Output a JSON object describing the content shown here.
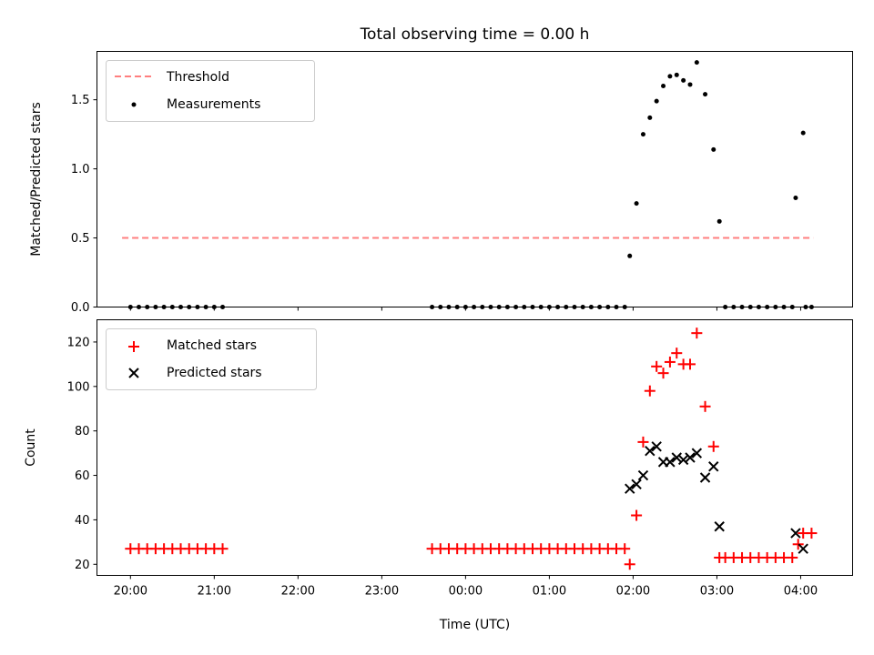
{
  "chart_data": [
    {
      "type": "scatter",
      "title": "Total observing time = 0.00 h",
      "xlabel": "",
      "ylabel": "Matched/Predicted stars",
      "ylim": [
        0,
        1.85
      ],
      "yticks": [
        0.0,
        0.5,
        1.0,
        1.5
      ],
      "ytick_labels": [
        "0.0",
        "0.5",
        "1.0",
        "1.5"
      ],
      "xlim": [
        -0.4,
        8.62
      ],
      "xticks": [
        0,
        1,
        2,
        3,
        4,
        5,
        6,
        7,
        8
      ],
      "legend": {
        "position": "top-left",
        "entries": [
          "Threshold",
          "Measurements"
        ]
      },
      "series": [
        {
          "name": "Threshold",
          "kind": "dashed-line",
          "color": "#ff7f7f",
          "x": [
            -0.1,
            8.15
          ],
          "y": [
            0.5,
            0.5
          ]
        },
        {
          "name": "Measurements",
          "kind": "dot",
          "color": "#000000",
          "x": [
            0.0,
            0.1,
            0.2,
            0.3,
            0.4,
            0.5,
            0.6,
            0.7,
            0.8,
            0.9,
            1.0,
            1.1,
            3.6,
            3.7,
            3.8,
            3.9,
            4.0,
            4.1,
            4.2,
            4.3,
            4.4,
            4.5,
            4.6,
            4.7,
            4.8,
            4.9,
            5.0,
            5.1,
            5.2,
            5.3,
            5.4,
            5.5,
            5.6,
            5.7,
            5.8,
            5.9,
            5.96,
            6.04,
            6.12,
            6.2,
            6.28,
            6.36,
            6.44,
            6.52,
            6.6,
            6.68,
            6.76,
            6.86,
            6.96,
            7.03,
            7.1,
            7.2,
            7.3,
            7.4,
            7.5,
            7.6,
            7.7,
            7.8,
            7.9,
            8.06,
            8.13,
            7.94,
            8.03
          ],
          "y": [
            0,
            0,
            0,
            0,
            0,
            0,
            0,
            0,
            0,
            0,
            0,
            0,
            0,
            0,
            0,
            0,
            0,
            0,
            0,
            0,
            0,
            0,
            0,
            0,
            0,
            0,
            0,
            0,
            0,
            0,
            0,
            0,
            0,
            0,
            0,
            0,
            0.37,
            0.75,
            1.25,
            1.37,
            1.49,
            1.6,
            1.67,
            1.68,
            1.64,
            1.61,
            1.77,
            1.54,
            1.14,
            0.62,
            0,
            0,
            0,
            0,
            0,
            0,
            0,
            0,
            0,
            0,
            0,
            0.79,
            1.26
          ]
        }
      ]
    },
    {
      "type": "scatter",
      "xlabel": "Time (UTC)",
      "ylabel": "Count",
      "ylim": [
        15,
        130
      ],
      "yticks": [
        20,
        40,
        60,
        80,
        100,
        120
      ],
      "ytick_labels": [
        "20",
        "40",
        "60",
        "80",
        "100",
        "120"
      ],
      "xlim": [
        -0.4,
        8.62
      ],
      "xticks": [
        0,
        1,
        2,
        3,
        4,
        5,
        6,
        7,
        8
      ],
      "xtick_labels": [
        "20:00",
        "21:00",
        "22:00",
        "23:00",
        "00:00",
        "01:00",
        "02:00",
        "03:00",
        "04:00"
      ],
      "legend": {
        "position": "top-left",
        "entries": [
          "Matched stars",
          "Predicted stars"
        ]
      },
      "series": [
        {
          "name": "Matched stars",
          "kind": "plus",
          "color": "#ff0000",
          "x": [
            0.0,
            0.1,
            0.2,
            0.3,
            0.4,
            0.5,
            0.6,
            0.7,
            0.8,
            0.9,
            1.0,
            1.1,
            3.6,
            3.7,
            3.8,
            3.9,
            4.0,
            4.1,
            4.2,
            4.3,
            4.4,
            4.5,
            4.6,
            4.7,
            4.8,
            4.9,
            5.0,
            5.1,
            5.2,
            5.3,
            5.4,
            5.5,
            5.6,
            5.7,
            5.8,
            5.9,
            5.96,
            6.04,
            6.12,
            6.2,
            6.28,
            6.36,
            6.44,
            6.52,
            6.6,
            6.68,
            6.76,
            6.86,
            6.96,
            7.03,
            7.1,
            7.2,
            7.3,
            7.4,
            7.5,
            7.6,
            7.7,
            7.8,
            7.9,
            7.97,
            8.03,
            8.13
          ],
          "y": [
            27,
            27,
            27,
            27,
            27,
            27,
            27,
            27,
            27,
            27,
            27,
            27,
            27,
            27,
            27,
            27,
            27,
            27,
            27,
            27,
            27,
            27,
            27,
            27,
            27,
            27,
            27,
            27,
            27,
            27,
            27,
            27,
            27,
            27,
            27,
            27,
            20,
            42,
            75,
            98,
            109,
            106,
            111,
            115,
            110,
            110,
            124,
            91,
            73,
            23,
            23,
            23,
            23,
            23,
            23,
            23,
            23,
            23,
            23,
            29,
            34,
            34
          ]
        },
        {
          "name": "Predicted stars",
          "kind": "x",
          "color": "#000000",
          "x": [
            5.96,
            6.04,
            6.12,
            6.2,
            6.28,
            6.36,
            6.44,
            6.52,
            6.6,
            6.68,
            6.76,
            6.86,
            6.96,
            7.03,
            7.94,
            8.03
          ],
          "y": [
            54,
            56,
            60,
            71,
            73,
            66,
            66,
            68,
            67,
            68,
            70,
            59,
            64,
            37,
            34,
            27
          ]
        }
      ]
    }
  ]
}
